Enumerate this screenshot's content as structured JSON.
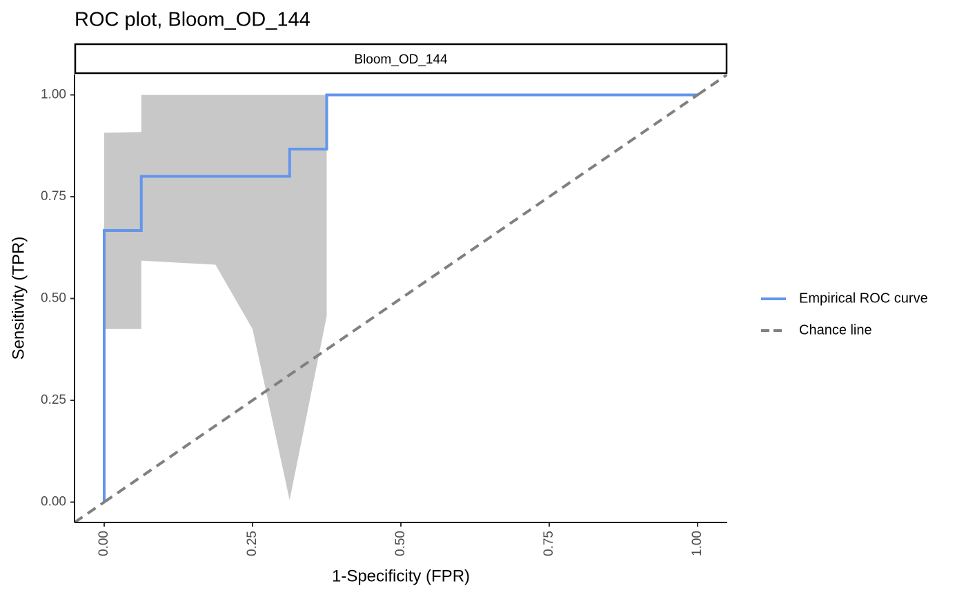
{
  "chart_data": {
    "type": "line",
    "title": "ROC plot, Bloom_OD_144",
    "facet_label": "Bloom_OD_144",
    "x_label": "1-Specificity (FPR)",
    "y_label": "Sensitivity (TPR)",
    "xlim": [
      -0.05,
      1.05
    ],
    "ylim": [
      -0.05,
      1.05
    ],
    "xticks": [
      {
        "value": 0,
        "label": "0.00"
      },
      {
        "value": 0.25,
        "label": "0.25"
      },
      {
        "value": 0.5,
        "label": "0.50"
      },
      {
        "value": 0.75,
        "label": "0.75"
      },
      {
        "value": 1,
        "label": "1.00"
      }
    ],
    "yticks": [
      {
        "value": 0,
        "label": "0.00"
      },
      {
        "value": 0.25,
        "label": "0.25"
      },
      {
        "value": 0.5,
        "label": "0.50"
      },
      {
        "value": 0.75,
        "label": "0.75"
      },
      {
        "value": 1,
        "label": "1.00"
      }
    ],
    "grid": false,
    "legend": "right",
    "confidence_band": {
      "color": "#c8c8c8",
      "x": [
        0,
        0.0625,
        0.0625,
        0.1875,
        0.25,
        0.3125,
        0.375
      ],
      "upper": [
        0.907,
        0.909,
        1,
        1,
        1,
        1,
        1
      ],
      "lower": [
        0.425,
        0.425,
        0.593,
        0.583,
        0.425,
        0.005,
        0.457
      ]
    },
    "series": [
      {
        "name": "Empirical ROC curve",
        "color": "#6495ed",
        "dash": false,
        "x": [
          0,
          0,
          0.0625,
          0.0625,
          0.3125,
          0.3125,
          0.375,
          0.375,
          1
        ],
        "values": [
          0,
          0.667,
          0.667,
          0.8,
          0.8,
          0.867,
          0.867,
          1,
          1
        ]
      },
      {
        "name": "Chance line",
        "color": "#808080",
        "dash": true,
        "x": [
          0,
          1
        ],
        "values": [
          0,
          1
        ]
      }
    ]
  }
}
